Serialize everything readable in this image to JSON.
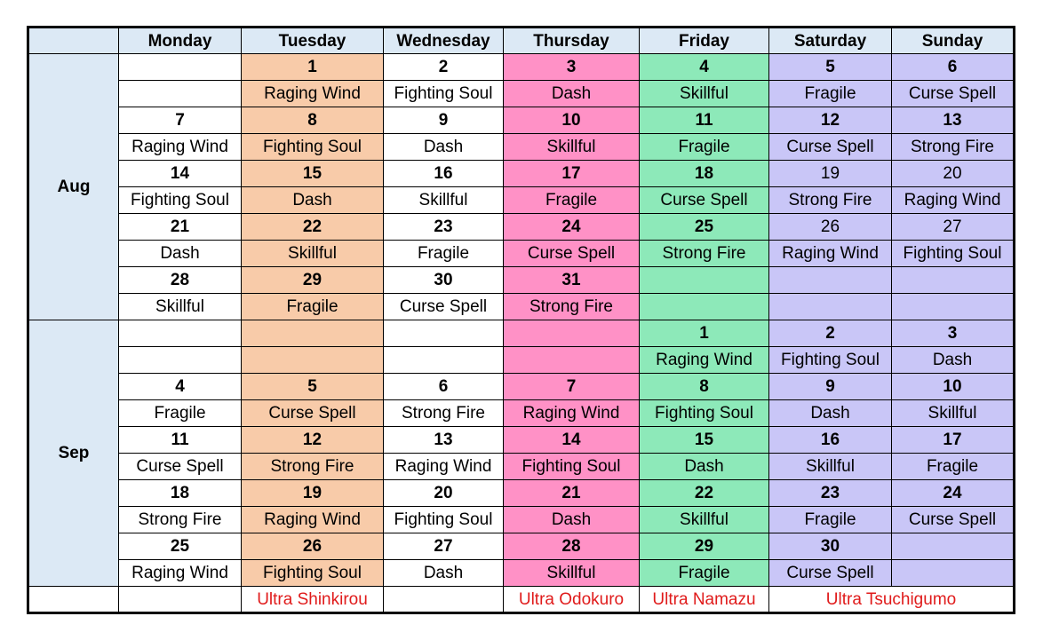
{
  "header": {
    "days": [
      "Monday",
      "Tuesday",
      "Wednesday",
      "Thursday",
      "Friday",
      "Saturday",
      "Sunday"
    ]
  },
  "months": [
    {
      "label": "Aug",
      "weeks": [
        {
          "dates": [
            "",
            "1",
            "2",
            "3",
            "4",
            "5",
            "6"
          ],
          "skills": [
            "",
            "Raging Wind",
            "Fighting Soul",
            "Dash",
            "Skillful",
            "Fragile",
            "Curse Spell"
          ]
        },
        {
          "dates": [
            "7",
            "8",
            "9",
            "10",
            "11",
            "12",
            "13"
          ],
          "skills": [
            "Raging Wind",
            "Fighting Soul",
            "Dash",
            "Skillful",
            "Fragile",
            "Curse Spell",
            "Strong Fire"
          ]
        },
        {
          "dates": [
            "14",
            "15",
            "16",
            "17",
            "18",
            "19",
            "20"
          ],
          "skills": [
            "Fighting Soul",
            "Dash",
            "Skillful",
            "Fragile",
            "Curse Spell",
            "Strong Fire",
            "Raging Wind"
          ]
        },
        {
          "dates": [
            "21",
            "22",
            "23",
            "24",
            "25",
            "26",
            "27"
          ],
          "skills": [
            "Dash",
            "Skillful",
            "Fragile",
            "Curse Spell",
            "Strong Fire",
            "Raging Wind",
            "Fighting Soul"
          ]
        },
        {
          "dates": [
            "28",
            "29",
            "30",
            "31",
            "",
            "",
            ""
          ],
          "skills": [
            "Skillful",
            "Fragile",
            "Curse Spell",
            "Strong Fire",
            "",
            "",
            ""
          ]
        }
      ]
    },
    {
      "label": "Sep",
      "weeks": [
        {
          "dates": [
            "",
            "",
            "",
            "",
            "1",
            "2",
            "3"
          ],
          "skills": [
            "",
            "",
            "",
            "",
            "Raging Wind",
            "Fighting Soul",
            "Dash"
          ]
        },
        {
          "dates": [
            "4",
            "5",
            "6",
            "7",
            "8",
            "9",
            "10"
          ],
          "skills": [
            "Fragile",
            "Curse Spell",
            "Strong Fire",
            "Raging Wind",
            "Fighting Soul",
            "Dash",
            "Skillful"
          ]
        },
        {
          "dates": [
            "11",
            "12",
            "13",
            "14",
            "15",
            "16",
            "17"
          ],
          "skills": [
            "Curse Spell",
            "Strong Fire",
            "Raging Wind",
            "Fighting Soul",
            "Dash",
            "Skillful",
            "Fragile"
          ]
        },
        {
          "dates": [
            "18",
            "19",
            "20",
            "21",
            "22",
            "23",
            "24"
          ],
          "skills": [
            "Strong Fire",
            "Raging Wind",
            "Fighting Soul",
            "Dash",
            "Skillful",
            "Fragile",
            "Curse Spell"
          ]
        },
        {
          "dates": [
            "25",
            "26",
            "27",
            "28",
            "29",
            "30",
            ""
          ],
          "skills": [
            "Raging Wind",
            "Fighting Soul",
            "Dash",
            "Skillful",
            "Fragile",
            "Curse Spell",
            ""
          ]
        }
      ]
    }
  ],
  "footer": {
    "tuesday": "Ultra Shinkirou",
    "thursday": "Ultra Odokuro",
    "friday": "Ultra Namazu",
    "weekend": "Ultra Tsuchigumo"
  },
  "colors": {
    "header_bg": "#dce9f5",
    "tuesday": "#f8cba9",
    "thursday": "#ff91c6",
    "friday": "#8de9b9",
    "weekend": "#c9c6f7",
    "footer_text": "#e01b1b"
  }
}
